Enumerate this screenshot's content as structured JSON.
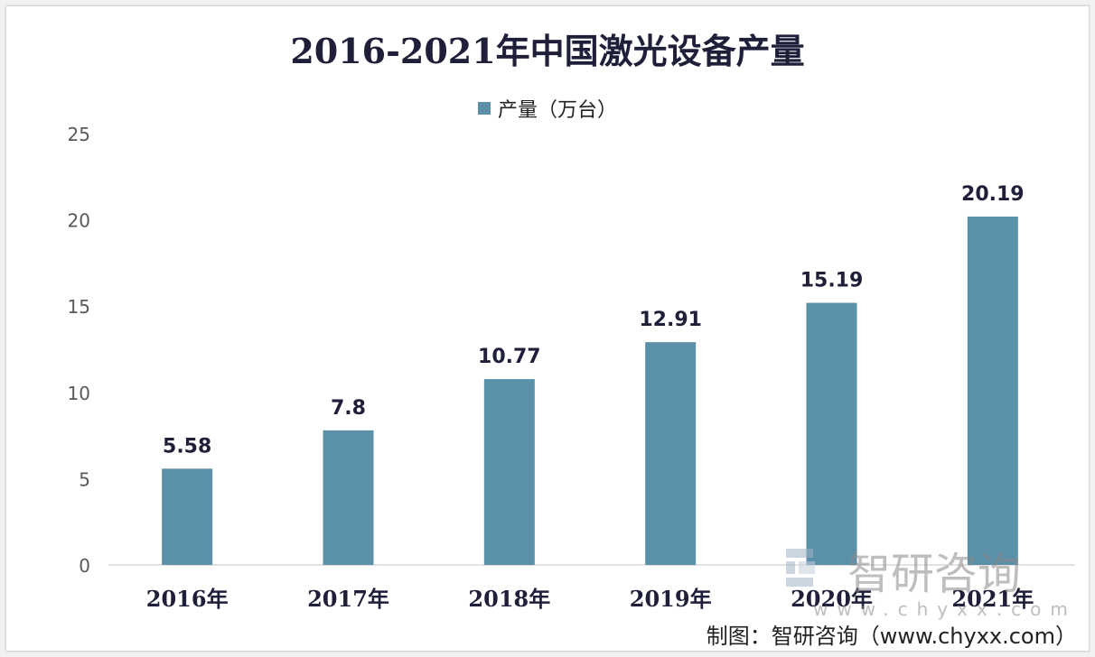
{
  "chart_data": {
    "type": "bar",
    "title": "2016-2021年中国激光设备产量",
    "legend": "产量（万台）",
    "legend_position": "top",
    "categories": [
      "2016年",
      "2017年",
      "2018年",
      "2019年",
      "2020年",
      "2021年"
    ],
    "series": [
      {
        "name": "产量（万台）",
        "values": [
          5.58,
          7.8,
          10.77,
          12.91,
          15.19,
          20.19
        ],
        "labels": [
          "5.58",
          "7.8",
          "10.77",
          "12.91",
          "15.19",
          "20.19"
        ]
      }
    ],
    "ylim": [
      0,
      25
    ],
    "yticks": [
      0,
      5,
      10,
      15,
      20,
      25
    ],
    "xlabel": "",
    "ylabel": "",
    "grid": false,
    "bar_color": "#5b90a9"
  },
  "watermark": {
    "text": "智研咨询",
    "url": "www.chyxx.com"
  },
  "source": "制图：智研咨询（www.chyxx.com）"
}
